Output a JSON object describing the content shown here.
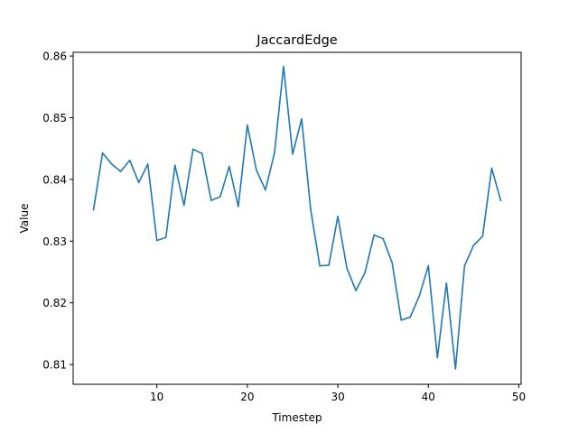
{
  "chart_data": {
    "type": "line",
    "title": "JaccardEdge",
    "xlabel": "Timestep",
    "ylabel": "Value",
    "xlim": [
      0.75,
      50.25
    ],
    "ylim": [
      0.8068,
      0.8606
    ],
    "xticks": [
      10,
      20,
      30,
      40,
      50
    ],
    "yticks": [
      0.81,
      0.82,
      0.83,
      0.84,
      0.85,
      0.86
    ],
    "ytick_labels": [
      "0.81",
      "0.82",
      "0.83",
      "0.84",
      "0.85",
      "0.86"
    ],
    "grid": false,
    "series": [
      {
        "color": "#1f77b4",
        "x": [
          3,
          4,
          5,
          6,
          7,
          8,
          9,
          10,
          11,
          12,
          13,
          14,
          15,
          16,
          17,
          18,
          19,
          20,
          21,
          22,
          23,
          24,
          25,
          26,
          27,
          28,
          29,
          30,
          31,
          32,
          33,
          34,
          35,
          36,
          37,
          38,
          39,
          40,
          41,
          42,
          43,
          44,
          45,
          46,
          47,
          48
        ],
        "y": [
          0.8351,
          0.8443,
          0.8425,
          0.8413,
          0.8431,
          0.8395,
          0.8425,
          0.8301,
          0.8306,
          0.8423,
          0.8358,
          0.8449,
          0.8442,
          0.8366,
          0.8372,
          0.8421,
          0.8356,
          0.8488,
          0.8415,
          0.8383,
          0.8443,
          0.8583,
          0.8441,
          0.8498,
          0.8351,
          0.826,
          0.8261,
          0.834,
          0.8256,
          0.822,
          0.8249,
          0.831,
          0.8304,
          0.8265,
          0.8172,
          0.8177,
          0.8211,
          0.826,
          0.8111,
          0.8232,
          0.8093,
          0.826,
          0.8293,
          0.8308,
          0.8418,
          0.8366
        ]
      }
    ]
  }
}
